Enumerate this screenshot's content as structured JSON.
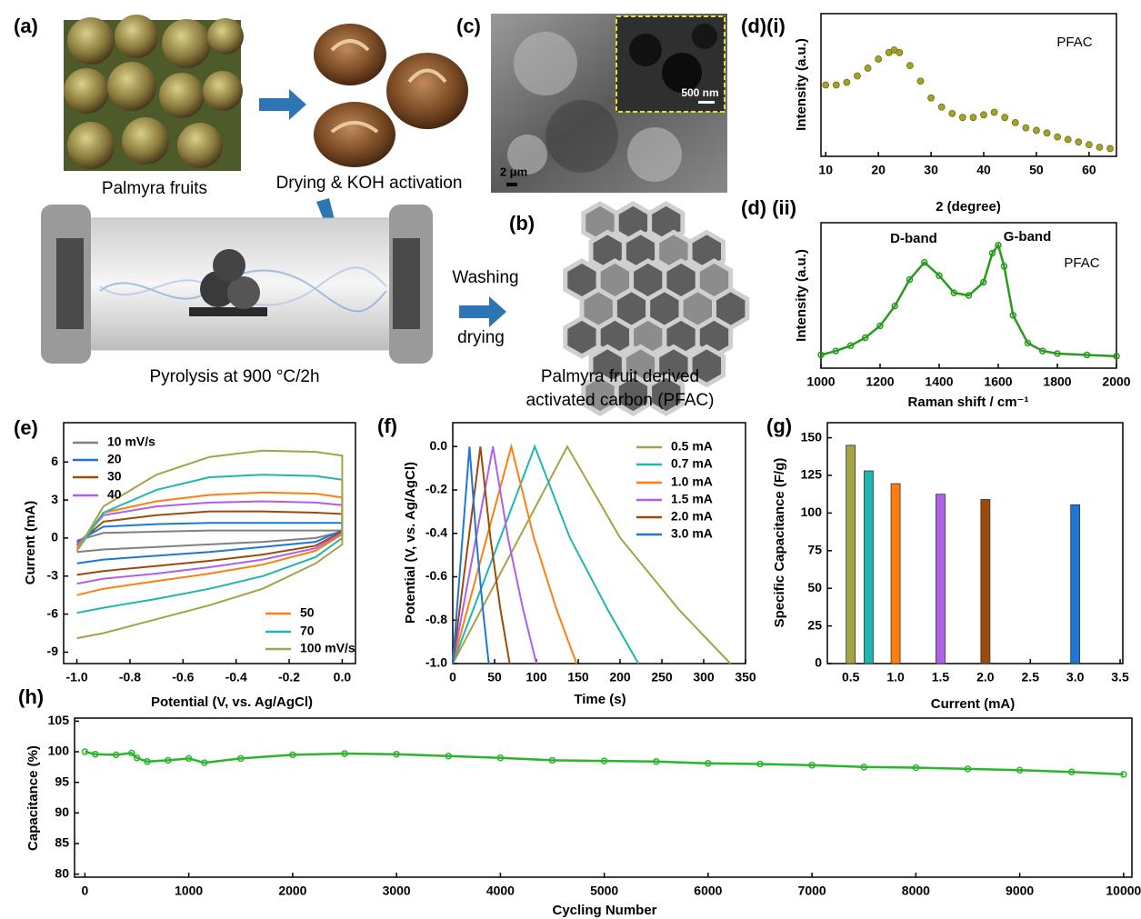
{
  "panels": {
    "a": {
      "label": "(a)",
      "fruits": "Palmyra fruits",
      "activation": "Drying & KOH activation",
      "pyrolysis": "Pyrolysis at 900 °C/2h",
      "washing": "Washing",
      "drying": "drying"
    },
    "b": {
      "label": "(b)",
      "caption_1": "Palmyra fruit derived",
      "caption_2": "activated carbon (PFAC)"
    },
    "c": {
      "label": "(c)",
      "scale_main": "2 μm",
      "scale_inset": "500 nm"
    }
  },
  "chart_data": [
    {
      "type": "scatter",
      "panel_label": "(d)(i)",
      "xlabel": "2 (degree)",
      "ylabel": "Intensity (a.u.)",
      "color": "#a3a22b",
      "annotations": [
        {
          "text": "PFAC"
        }
      ],
      "x": [
        10,
        12,
        14,
        16,
        18,
        20,
        22,
        23,
        24,
        26,
        28,
        30,
        32,
        34,
        36,
        38,
        40,
        42,
        44,
        46,
        48,
        50,
        52,
        54,
        56,
        58,
        60,
        62,
        64
      ],
      "values": [
        0.55,
        0.55,
        0.57,
        0.62,
        0.68,
        0.75,
        0.8,
        0.82,
        0.8,
        0.7,
        0.58,
        0.45,
        0.38,
        0.33,
        0.3,
        0.3,
        0.32,
        0.34,
        0.3,
        0.26,
        0.22,
        0.2,
        0.18,
        0.15,
        0.13,
        0.11,
        0.09,
        0.07,
        0.06
      ],
      "xlim": [
        9.1,
        65.2
      ],
      "xticks": [
        10,
        20,
        30,
        40,
        50,
        60
      ],
      "ylim": [
        0,
        1.1
      ]
    },
    {
      "type": "line",
      "panel_label": "(d) (ii)",
      "xlabel": "Raman shift / cm⁻¹",
      "ylabel": "Intensity (a.u.)",
      "color": "#2a9a1f",
      "marker": "circle",
      "annotations": [
        {
          "text": "D-band"
        },
        {
          "text": "G-band"
        },
        {
          "text": "PFAC"
        }
      ],
      "x": [
        1000,
        1050,
        1100,
        1150,
        1200,
        1250,
        1300,
        1350,
        1400,
        1450,
        1500,
        1550,
        1580,
        1600,
        1620,
        1650,
        1700,
        1750,
        1800,
        1900,
        2000
      ],
      "values": [
        0.05,
        0.08,
        0.12,
        0.18,
        0.27,
        0.42,
        0.62,
        0.75,
        0.65,
        0.52,
        0.5,
        0.6,
        0.82,
        0.88,
        0.72,
        0.35,
        0.14,
        0.08,
        0.06,
        0.05,
        0.04
      ],
      "xlim": [
        1000,
        2000
      ],
      "xticks": [
        1000,
        1200,
        1400,
        1600,
        1800,
        2000
      ],
      "ylim": [
        -0.05,
        1.05
      ]
    },
    {
      "type": "line",
      "panel_label": "(e)",
      "xlabel": "Potential (V, vs. Ag/AgCl)",
      "ylabel": "Current (mA)",
      "xlim": [
        -1.05,
        0.05
      ],
      "xticks": [
        {
          "value": -1,
          "label": "-1.0"
        },
        -0.8,
        -0.6,
        -0.4,
        -0.2,
        {
          "value": 0,
          "label": "0.0"
        }
      ],
      "ylim": [
        -9.9,
        9.1
      ],
      "yticks": [
        -9,
        -6,
        -3,
        0,
        3,
        6
      ],
      "series": [
        {
          "name": "10 mV/s",
          "color": "#808080",
          "x": [
            -1,
            -0.9,
            -0.7,
            -0.5,
            -0.3,
            -0.1,
            0,
            0,
            -0.1,
            -0.3,
            -0.5,
            -0.7,
            -0.9,
            -1
          ],
          "values": [
            -0.2,
            0.4,
            0.5,
            0.6,
            0.6,
            0.6,
            0.6,
            0.5,
            0,
            -0.3,
            -0.5,
            -0.7,
            -0.9,
            -1.1
          ]
        },
        {
          "name": "20",
          "color": "#1f77d4",
          "x": [
            -1,
            -0.9,
            -0.7,
            -0.5,
            -0.3,
            -0.1,
            0,
            0,
            -0.1,
            -0.3,
            -0.5,
            -0.7,
            -0.9,
            -1
          ],
          "values": [
            -0.3,
            0.9,
            1.1,
            1.2,
            1.2,
            1.2,
            1.2,
            0.6,
            -0.3,
            -0.7,
            -1.1,
            -1.4,
            -1.7,
            -2
          ]
        },
        {
          "name": "30",
          "color": "#9c4a0a",
          "x": [
            -1,
            -0.9,
            -0.7,
            -0.5,
            -0.3,
            -0.1,
            0,
            0,
            -0.1,
            -0.3,
            -0.5,
            -0.7,
            -0.9,
            -1
          ],
          "values": [
            -0.5,
            1.3,
            1.8,
            2.1,
            2.1,
            2,
            1.9,
            0.5,
            -0.6,
            -1.3,
            -1.8,
            -2.2,
            -2.6,
            -2.9
          ]
        },
        {
          "name": "40",
          "color": "#b15ee8",
          "x": [
            -1,
            -0.9,
            -0.7,
            -0.5,
            -0.3,
            -0.1,
            0,
            0,
            -0.1,
            -0.3,
            -0.5,
            -0.7,
            -0.9,
            -1
          ],
          "values": [
            -0.6,
            1.8,
            2.5,
            2.8,
            2.9,
            2.8,
            2.6,
            0.4,
            -0.8,
            -1.7,
            -2.3,
            -2.8,
            -3.2,
            -3.6
          ]
        },
        {
          "name": "50",
          "color": "#ff7f0e",
          "x": [
            -1,
            -0.9,
            -0.7,
            -0.5,
            -0.3,
            -0.1,
            0,
            0,
            -0.1,
            -0.3,
            -0.5,
            -0.7,
            -0.9,
            -1
          ],
          "values": [
            -0.8,
            2,
            2.9,
            3.4,
            3.6,
            3.5,
            3.2,
            0.3,
            -1,
            -2.1,
            -2.8,
            -3.4,
            -4,
            -4.5
          ]
        },
        {
          "name": "70",
          "color": "#1fb5b0",
          "x": [
            -1,
            -0.9,
            -0.7,
            -0.5,
            -0.3,
            -0.1,
            0,
            0,
            -0.1,
            -0.3,
            -0.5,
            -0.7,
            -0.9,
            -1
          ],
          "values": [
            -1,
            2,
            3.8,
            4.8,
            5,
            4.9,
            4.6,
            0,
            -1.5,
            -3,
            -4,
            -4.8,
            -5.5,
            -5.9
          ]
        },
        {
          "name": "100 mV/s",
          "color": "#a3a347",
          "x": [
            -1,
            -0.9,
            -0.7,
            -0.5,
            -0.3,
            -0.1,
            0,
            0,
            -0.1,
            -0.3,
            -0.5,
            -0.7,
            -0.9,
            -1
          ],
          "values": [
            -1,
            2.5,
            5,
            6.4,
            6.9,
            6.8,
            6.5,
            -0.5,
            -2,
            -4,
            -5.3,
            -6.4,
            -7.5,
            -7.9
          ]
        }
      ]
    },
    {
      "type": "line",
      "panel_label": "(f)",
      "xlabel": "Time (s)",
      "ylabel": "Potential (V, vs. Ag/AgCl)",
      "xlim": [
        0,
        350
      ],
      "xticks": [
        0,
        50,
        100,
        150,
        200,
        250,
        300,
        350
      ],
      "ylim": [
        -1,
        0.11
      ],
      "yticks": [
        {
          "value": -1,
          "label": "-1.0"
        },
        -0.8,
        -0.6,
        -0.4,
        -0.2,
        {
          "value": 0,
          "label": "0.0"
        }
      ],
      "series": [
        {
          "name": "0.5 mA",
          "color": "#a3a347",
          "x": [
            0,
            137,
            200,
            270,
            332
          ],
          "values": [
            -1,
            0,
            -0.42,
            -0.75,
            -1
          ]
        },
        {
          "name": "0.7 mA",
          "color": "#1fb5b0",
          "x": [
            0,
            98,
            140,
            185,
            222
          ],
          "values": [
            -1,
            0,
            -0.42,
            -0.75,
            -1
          ]
        },
        {
          "name": "1.0 mA",
          "color": "#ff7f0e",
          "x": [
            0,
            70,
            97,
            124,
            148
          ],
          "values": [
            -1,
            0,
            -0.42,
            -0.75,
            -1
          ]
        },
        {
          "name": "1.5 mA",
          "color": "#b15ee8",
          "x": [
            0,
            48,
            66,
            84,
            100
          ],
          "values": [
            -1,
            0,
            -0.42,
            -0.75,
            -1
          ]
        },
        {
          "name": "2.0 mA",
          "color": "#9c4a0a",
          "x": [
            0,
            33,
            45,
            57,
            68
          ],
          "values": [
            -1,
            0,
            -0.42,
            -0.75,
            -1
          ]
        },
        {
          "name": "3.0 mA",
          "color": "#1f77d4",
          "x": [
            0,
            20,
            28,
            36,
            43
          ],
          "values": [
            -1,
            0,
            -0.42,
            -0.75,
            -1
          ]
        }
      ]
    },
    {
      "type": "bar",
      "panel_label": "(g)",
      "xlabel": "Current (mA)",
      "ylabel": "Specific Capacitance (F/g)",
      "x": [
        0.5,
        0.7,
        1,
        1.5,
        2,
        3
      ],
      "values": [
        145,
        128,
        119.5,
        112.5,
        109,
        105.5
      ],
      "colors": [
        "#a3a347",
        "#1fb5b0",
        "#ff7f0e",
        "#b15ee8",
        "#9c4a0a",
        "#1f77d4"
      ],
      "xlim": [
        0.24,
        3.53
      ],
      "xticks": [
        0.5,
        {
          "value": 1,
          "label": "1.0"
        },
        1.5,
        {
          "value": 2,
          "label": "2.0"
        },
        2.5,
        {
          "value": 3,
          "label": "3.0"
        },
        3.5
      ],
      "ylim": [
        0,
        160
      ],
      "yticks": [
        0,
        25,
        50,
        75,
        100,
        125,
        150
      ]
    },
    {
      "type": "line",
      "panel_label": "(h)",
      "xlabel": "Cycling Number",
      "ylabel": "Capacitance  (%)",
      "color": "#2ab52a",
      "marker": "circle",
      "x": [
        0,
        100,
        300,
        450,
        500,
        600,
        800,
        1000,
        1150,
        1500,
        2000,
        2500,
        3000,
        3500,
        4000,
        4500,
        5000,
        5500,
        6000,
        6500,
        7000,
        7500,
        8000,
        8500,
        9000,
        9500,
        10000
      ],
      "values": [
        100,
        99.6,
        99.5,
        99.8,
        99,
        98.4,
        98.6,
        98.9,
        98.2,
        98.9,
        99.5,
        99.7,
        99.6,
        99.3,
        99,
        98.6,
        98.5,
        98.4,
        98.1,
        98,
        97.8,
        97.5,
        97.4,
        97.2,
        97,
        96.7,
        96.3
      ],
      "xlim": [
        -100,
        10080
      ],
      "xticks": [
        0,
        1000,
        2000,
        3000,
        4000,
        5000,
        6000,
        7000,
        8000,
        9000,
        10000
      ],
      "ylim": [
        79.5,
        105.5
      ],
      "yticks": [
        80,
        85,
        90,
        95,
        100,
        105
      ]
    }
  ]
}
